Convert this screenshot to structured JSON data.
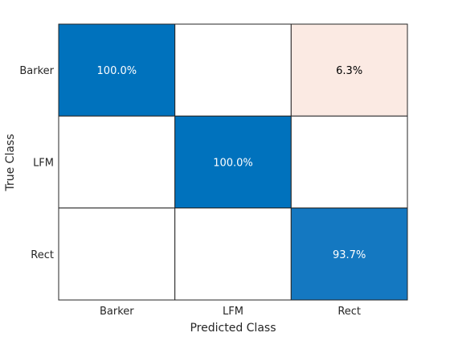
{
  "chart_data": {
    "type": "heatmap",
    "title": "",
    "xlabel": "Predicted Class",
    "ylabel": "True Class",
    "x_categories": [
      "Barker",
      "LFM",
      "Rect"
    ],
    "y_categories": [
      "Barker",
      "LFM",
      "Rect"
    ],
    "cells": [
      [
        100.0,
        null,
        6.3
      ],
      [
        null,
        100.0,
        null
      ],
      [
        null,
        null,
        93.7
      ]
    ],
    "cell_labels": [
      [
        "100.0%",
        "",
        "6.3%"
      ],
      [
        "",
        "100.0%",
        ""
      ],
      [
        "",
        "",
        "93.7%"
      ]
    ],
    "cell_colors": [
      [
        "#0072bd",
        "#ffffff",
        "#fbeae3"
      ],
      [
        "#ffffff",
        "#0072bd",
        "#ffffff"
      ],
      [
        "#ffffff",
        "#ffffff",
        "#1478c1"
      ]
    ],
    "label_colors": {
      "dark_cell": "#ffffff",
      "light_cell": "#000000"
    },
    "grid_color": "#262626"
  }
}
